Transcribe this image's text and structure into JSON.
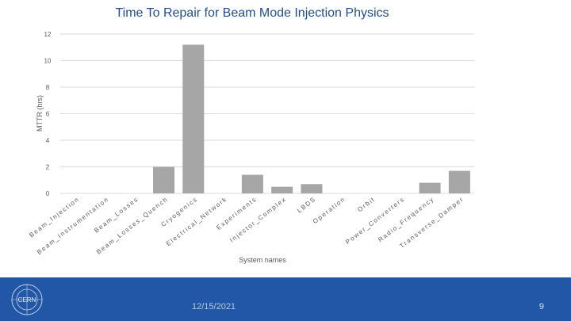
{
  "chart_data": {
    "type": "bar",
    "title": "Time To Repair for Beam Mode Injection Physics",
    "xlabel": "System names",
    "ylabel": "MTTR (hrs)",
    "ylim": [
      0,
      12
    ],
    "yticks": [
      0,
      2,
      4,
      6,
      8,
      10,
      12
    ],
    "grid": true,
    "color": "#a6a6a6",
    "categories": [
      "Beam_Injection",
      "Beam_Instrumentation",
      "Beam_Losses",
      "Beam_Losses_Quench",
      "Cryogenics",
      "Electrical_Network",
      "Experiments",
      "Injector_Complex",
      "LBDS",
      "Operation",
      "Orbit",
      "Power_Converters",
      "Radio_Frequency",
      "Transverse_Damper"
    ],
    "values": [
      0,
      0,
      0,
      2.0,
      11.2,
      0,
      1.4,
      0.5,
      0.7,
      0,
      0,
      0,
      0.8,
      1.7
    ]
  },
  "footer": {
    "logo_text": "CERN",
    "date": "12/15/2021",
    "page_number": "9"
  }
}
